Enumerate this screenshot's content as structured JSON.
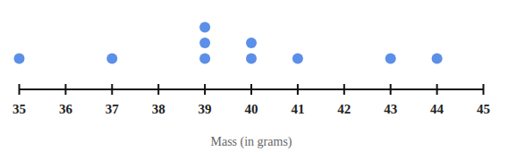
{
  "chart_data": {
    "type": "dot plot",
    "x_label": "Mass (in grams)",
    "values": [
      35,
      37,
      39,
      39,
      39,
      40,
      40,
      41,
      43,
      44
    ],
    "color": "#5b8fe8",
    "xlim": [
      35,
      45
    ],
    "xticks": [
      35,
      36,
      37,
      38,
      39,
      40,
      41,
      42,
      43,
      44,
      45
    ],
    "tick_labels": "x"
  }
}
